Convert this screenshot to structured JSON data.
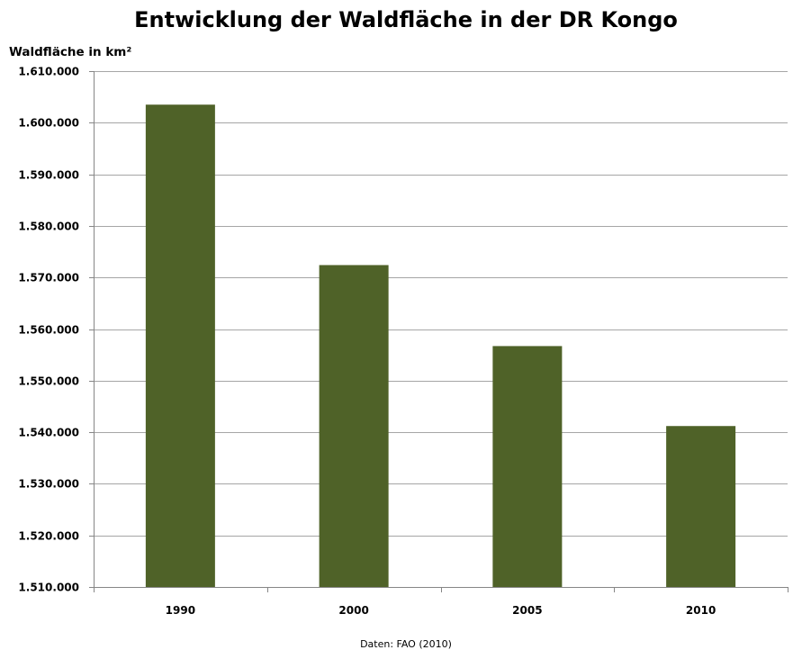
{
  "chart_data": {
    "type": "bar",
    "title": "Entwicklung der Waldfläche in der DR Kongo",
    "ylabel": "Waldfläche in km²",
    "xlabel": "",
    "categories": [
      "1990",
      "2000",
      "2005",
      "2010"
    ],
    "values": [
      1603500,
      1572400,
      1556700,
      1541200
    ],
    "ylim": [
      1510000,
      1610000
    ],
    "yticks": [
      1510000,
      1520000,
      1530000,
      1540000,
      1550000,
      1560000,
      1570000,
      1580000,
      1590000,
      1600000,
      1610000
    ],
    "ytick_labels": [
      "1.510.000",
      "1.520.000",
      "1.530.000",
      "1.540.000",
      "1.550.000",
      "1.560.000",
      "1.570.000",
      "1.580.000",
      "1.590.000",
      "1.600.000",
      "1.610.000"
    ],
    "grid": true,
    "legend": "none",
    "bar_color": "#4f6228",
    "gridline_color": "#a6a6a6",
    "source": "Daten: FAO (2010)"
  }
}
